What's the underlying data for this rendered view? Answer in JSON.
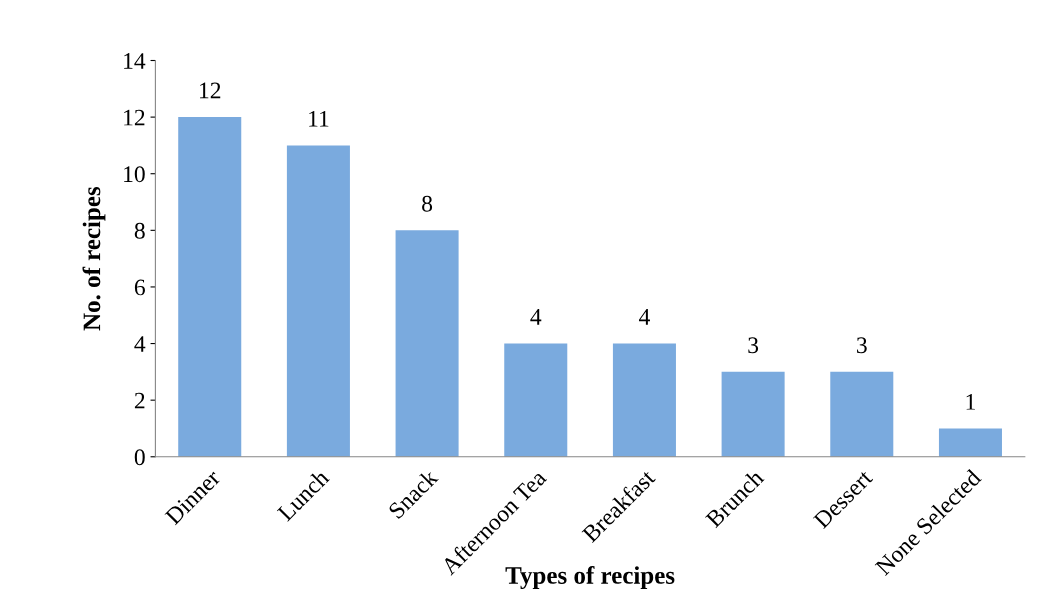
{
  "chart_data": {
    "type": "bar",
    "xlabel": "Types of recipes",
    "ylabel": "No. of recipes",
    "categories": [
      "Dinner",
      "Lunch",
      "Snack",
      "Afternoon Tea",
      "Breakfast",
      "Brunch",
      "Dessert",
      "None Selected"
    ],
    "values": [
      12,
      11,
      8,
      4,
      4,
      3,
      3,
      1
    ],
    "color": "#7aaade",
    "ylim": [
      0,
      14
    ],
    "yticks": [
      0,
      2,
      4,
      6,
      8,
      10,
      12,
      14
    ],
    "grid": false,
    "data_labels": true
  }
}
